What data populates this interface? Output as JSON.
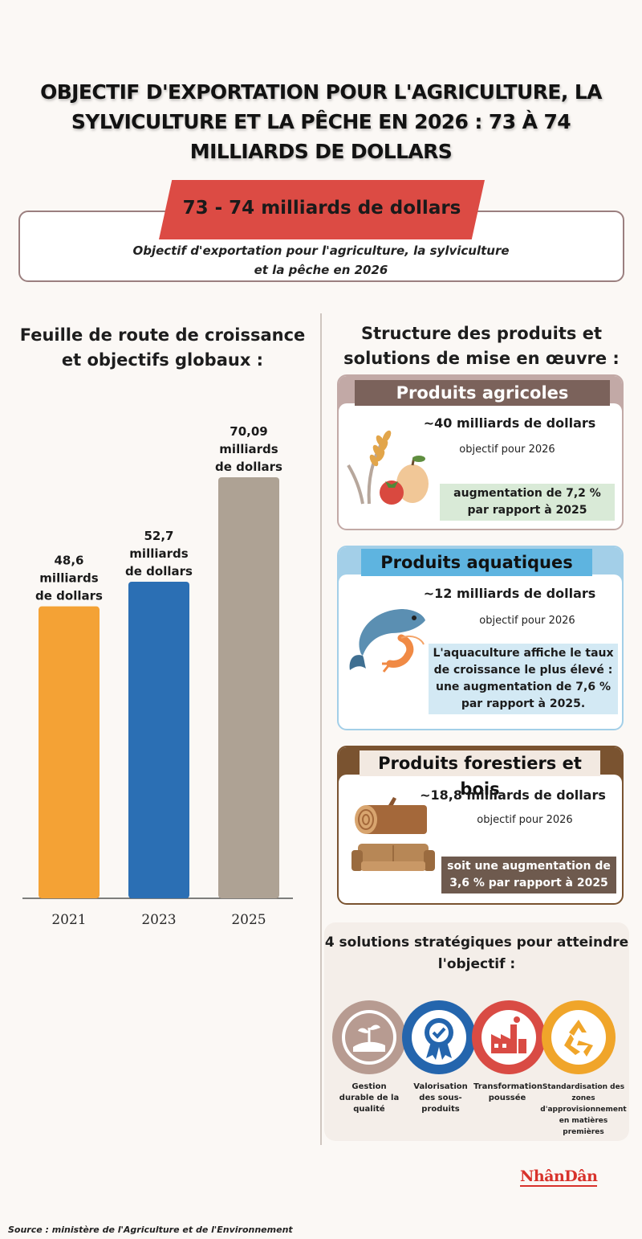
{
  "title": "OBJECTIF D'EXPORTATION POUR L'AGRICULTURE, LA SYLVICULTURE ET LA PÊCHE EN 2026 : 73 À 74 MILLIARDS DE DOLLARS",
  "goal": {
    "amount": "73 - 74 milliards de dollars",
    "description": "Objectif d'exportation pour l'agriculture, la sylviculture et la pêche en 2026"
  },
  "left_heading": "Feuille de route de croissance et objectifs globaux :",
  "right_heading": "Structure des produits et solutions de mise en œuvre :",
  "chart_data": {
    "type": "bar",
    "categories": [
      "2021",
      "2023",
      "2025"
    ],
    "values": [
      48.6,
      52.7,
      70.09
    ],
    "value_labels": [
      "48,6 milliards de dollars",
      "52,7 milliards de dollars",
      "70,09 milliards de dollars"
    ],
    "colors": [
      "#f4a235",
      "#2b6fb4",
      "#aea294"
    ],
    "title": "",
    "xlabel": "",
    "ylabel": "",
    "ylim": [
      0,
      70.09
    ],
    "grid": false
  },
  "cards": [
    {
      "header": "Produits agricoles",
      "amount": "~40 milliards de dollars",
      "sub": "objectif pour 2026",
      "note": "augmentation de 7,2 % par rapport à 2025",
      "accent": "#c2a9a6",
      "header_bg": "#7b625b",
      "header_color": "#ffffff",
      "note_bg": "#d9ead7",
      "icon": "wheat-fruit-icon"
    },
    {
      "header": "Produits aquatiques",
      "amount": "~12 milliards de dollars",
      "sub": "objectif pour 2026",
      "note": "L'aquaculture affiche le taux de croissance le plus élevé : une augmentation de 7,6 % par rapport à 2025.",
      "accent": "#a3cfe8",
      "header_bg": "#5eb4e0",
      "header_color": "#111111",
      "note_bg": "#d3e9f4",
      "icon": "fish-shrimp-icon"
    },
    {
      "header": "Produits forestiers et bois",
      "amount": "~18,8 milliards de dollars",
      "sub": "objectif pour 2026",
      "note": "soit une augmentation de 3,6 % par rapport à 2025",
      "accent": "#7a5330",
      "header_bg": "#f2e9e1",
      "header_color": "#111111",
      "note_bg": "#6e5a4e",
      "icon": "log-sofa-icon"
    }
  ],
  "solutions": {
    "heading": "4 solutions stratégiques pour atteindre l'objectif :",
    "items": [
      {
        "label": "Gestion durable de la qualité",
        "color": "#b79b91",
        "icon": "plant-field-icon"
      },
      {
        "label": "Valorisation des sous-produits",
        "color": "#2465ad",
        "icon": "award-badge-icon"
      },
      {
        "label": "Transformation poussée",
        "color": "#d94b44",
        "icon": "factory-icon"
      },
      {
        "label": "Standardisation des zones d'approvisionnement en matières premières",
        "color": "#f0a52a",
        "icon": "recycle-icon"
      }
    ]
  },
  "logo": "NhânDân",
  "source": "Source : ministère de l'Agriculture et de l'Environnement"
}
